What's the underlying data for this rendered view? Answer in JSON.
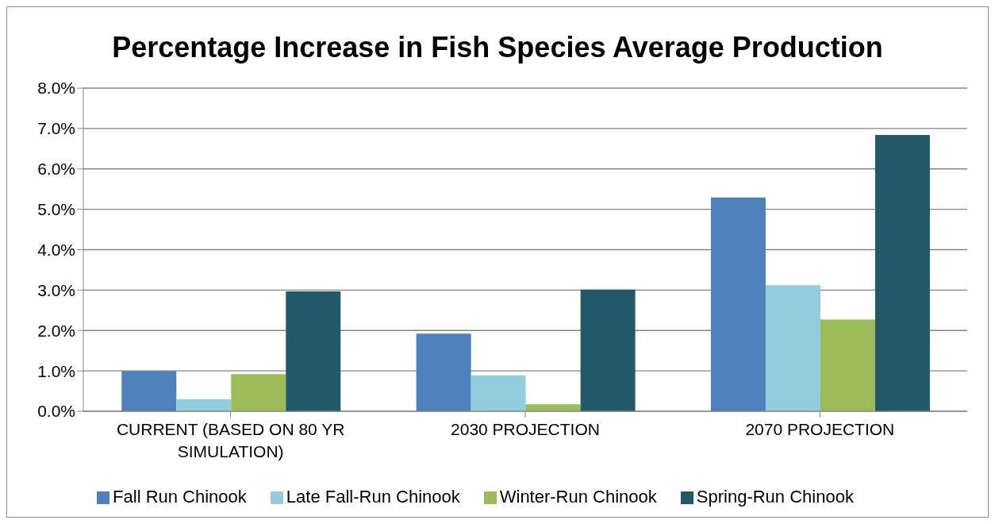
{
  "chart_data": {
    "type": "bar",
    "title": "Percentage Increase in Fish Species Average Production",
    "categories": [
      "CURRENT (BASED ON 80 YR SIMULATION)",
      "2030 PROJECTION",
      "2070 PROJECTION"
    ],
    "series": [
      {
        "name": "Fall Run Chinook",
        "color": "#4f81bd",
        "values": [
          1.0,
          1.92,
          5.29
        ]
      },
      {
        "name": "Late Fall-Run Chinook",
        "color": "#93cddd",
        "values": [
          0.3,
          0.89,
          3.12
        ]
      },
      {
        "name": "Winter-Run Chinook",
        "color": "#9bbb59",
        "values": [
          0.92,
          0.17,
          2.27
        ]
      },
      {
        "name": "Spring-Run Chinook",
        "color": "#215968",
        "values": [
          2.97,
          3.01,
          6.84
        ]
      }
    ],
    "ylim": [
      0,
      8
    ],
    "yticks": [
      {
        "value": 0,
        "label": "0.0%"
      },
      {
        "value": 1,
        "label": "1.0%"
      },
      {
        "value": 2,
        "label": "2.0%"
      },
      {
        "value": 3,
        "label": "3.0%"
      },
      {
        "value": 4,
        "label": "4.0%"
      },
      {
        "value": 5,
        "label": "5.0%"
      },
      {
        "value": 6,
        "label": "6.0%"
      },
      {
        "value": 7,
        "label": "7.0%"
      },
      {
        "value": 8,
        "label": "8.0%"
      }
    ],
    "grid": "y",
    "legend": "bottom"
  }
}
